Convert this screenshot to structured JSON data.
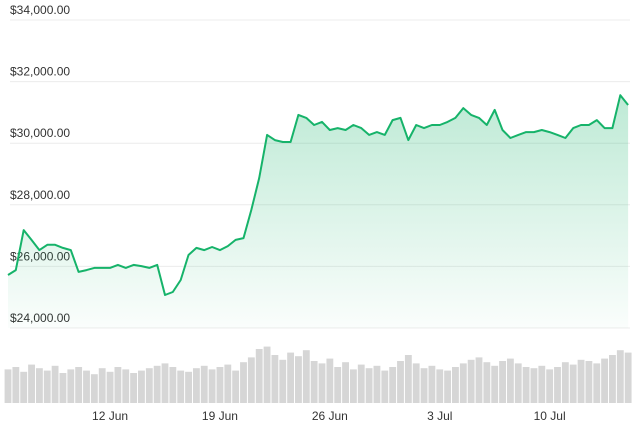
{
  "chart_data": {
    "type": "line",
    "categories": [
      null,
      null,
      null,
      null,
      null,
      null,
      null,
      null,
      null,
      null,
      null,
      null,
      null,
      "12 Jun",
      null,
      null,
      null,
      null,
      null,
      null,
      null,
      null,
      null,
      null,
      null,
      null,
      null,
      "19 Jun",
      null,
      null,
      null,
      null,
      null,
      null,
      null,
      null,
      null,
      null,
      null,
      null,
      null,
      "26 Jun",
      null,
      null,
      null,
      null,
      null,
      null,
      null,
      null,
      null,
      null,
      null,
      null,
      null,
      "3 Jul",
      null,
      null,
      null,
      null,
      null,
      null,
      null,
      null,
      null,
      null,
      null,
      null,
      null,
      "10 Jul",
      null,
      null,
      null,
      null,
      null,
      null,
      null,
      null,
      null,
      null
    ],
    "values": [
      25720,
      25880,
      27180,
      26860,
      26530,
      26700,
      26700,
      26600,
      26530,
      25820,
      25880,
      25950,
      25950,
      25950,
      26050,
      25950,
      26050,
      26010,
      25950,
      26050,
      25070,
      25170,
      25560,
      26370,
      26600,
      26530,
      26630,
      26530,
      26660,
      26860,
      26920,
      27830,
      28870,
      30270,
      30100,
      30040,
      30040,
      30920,
      30820,
      30590,
      30690,
      30430,
      30490,
      30430,
      30590,
      30490,
      30270,
      30360,
      30270,
      30750,
      30820,
      30100,
      30590,
      30490,
      30590,
      30590,
      30690,
      30820,
      31140,
      30920,
      30820,
      30590,
      31080,
      30430,
      30170,
      30270,
      30360,
      30360,
      30430,
      30360,
      30270,
      30170,
      30490,
      30590,
      30590,
      30750,
      30490,
      30490,
      31560,
      31240
    ],
    "color": "#16b36a",
    "volume": [
      28,
      30,
      26,
      32,
      29,
      27,
      31,
      25,
      28,
      30,
      27,
      24,
      29,
      26,
      30,
      28,
      25,
      27,
      29,
      31,
      33,
      30,
      27,
      26,
      29,
      31,
      28,
      30,
      32,
      27,
      34,
      38,
      45,
      47,
      40,
      36,
      42,
      39,
      44,
      35,
      33,
      37,
      30,
      34,
      28,
      32,
      29,
      31,
      27,
      30,
      35,
      40,
      33,
      29,
      31,
      28,
      27,
      30,
      33,
      36,
      38,
      34,
      31,
      35,
      37,
      33,
      30,
      29,
      31,
      28,
      30,
      34,
      32,
      36,
      35,
      33,
      37,
      40,
      44,
      42
    ],
    "volume_color": "#d6d6d6",
    "volume_lim": [
      0,
      50
    ],
    "ylim": [
      24000,
      34000
    ],
    "yticks": [
      {
        "value": 24000,
        "label": "$24,000.00"
      },
      {
        "value": 26000,
        "label": "$26,000.00"
      },
      {
        "value": 28000,
        "label": "$28,000.00"
      },
      {
        "value": 30000,
        "label": "$30,000.00"
      },
      {
        "value": 32000,
        "label": "$32,000.00"
      },
      {
        "value": 34000,
        "label": "$34,000.00"
      }
    ],
    "grid": true
  }
}
